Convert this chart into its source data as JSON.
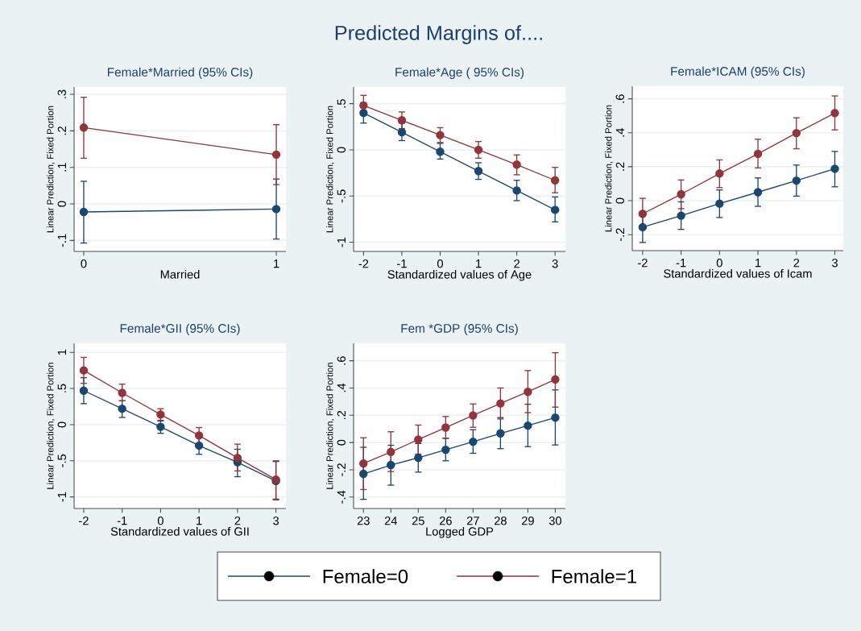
{
  "chart_data": [
    {
      "type": "line",
      "title": "Female*Married  (95% CIs)",
      "annotations": [
        "Predicted Margins of...."
      ],
      "xlabel": "Married",
      "ylabel": "Linear Prediction, Fixed Portion",
      "marker": "circle",
      "grid": "y",
      "x": [
        0,
        1
      ],
      "xlim": [
        -0.05,
        1.05
      ],
      "xticks": [
        0,
        1
      ],
      "ylim": [
        -0.13,
        0.32
      ],
      "yticks": [
        {
          "value": -0.1,
          "label": "-.1"
        },
        0,
        {
          "value": 0.1,
          "label": ".1"
        },
        {
          "value": 0.2,
          "label": ".2"
        },
        {
          "value": 0.3,
          "label": ".3"
        }
      ],
      "series": [
        {
          "color": "#1a476f",
          "values": [
            -0.022,
            -0.014
          ],
          "errors": [
            [
              -0.107,
              0.062
            ],
            [
              -0.096,
              0.068
            ]
          ]
        },
        {
          "color": "#90353b",
          "values": [
            0.209,
            0.135
          ],
          "errors": [
            [
              0.125,
              0.292
            ],
            [
              0.053,
              0.217
            ]
          ]
        }
      ]
    },
    {
      "type": "line",
      "title": "Female*Age ( 95% CIs)",
      "xlabel": "Standardized values of Age",
      "ylabel": "Linear Prediction, Fixed Portion",
      "marker": "circle",
      "grid": "y",
      "x": [
        -2,
        -1,
        0,
        1,
        2,
        3
      ],
      "xlim": [
        -2.26,
        3.27
      ],
      "xticks": [
        -2,
        -1,
        0,
        1,
        2,
        3
      ],
      "ylim": [
        -1.1,
        0.68
      ],
      "yticks": [
        -1,
        {
          "value": -0.5,
          "label": "-.5"
        },
        0,
        {
          "value": 0.5,
          "label": ".5"
        }
      ],
      "series": [
        {
          "color": "#1a476f",
          "values": [
            0.4,
            0.19,
            -0.02,
            -0.23,
            -0.44,
            -0.65
          ],
          "errors": [
            [
              0.29,
              0.51
            ],
            [
              0.1,
              0.29
            ],
            [
              -0.1,
              0.07
            ],
            [
              -0.32,
              -0.14
            ],
            [
              -0.55,
              -0.33
            ],
            [
              -0.78,
              -0.51
            ]
          ]
        },
        {
          "color": "#90353b",
          "values": [
            0.48,
            0.32,
            0.16,
            0.0,
            -0.16,
            -0.33
          ],
          "errors": [
            [
              0.375,
              0.59
            ],
            [
              0.23,
              0.41
            ],
            [
              0.08,
              0.24
            ],
            [
              -0.09,
              0.09
            ],
            [
              -0.27,
              -0.055
            ],
            [
              -0.465,
              -0.19
            ]
          ]
        }
      ]
    },
    {
      "type": "line",
      "title": "Female*ICAM (95% CIs)",
      "xlabel": "Standardized values of Icam",
      "ylabel": "Linear Prediction, Fixed Portion",
      "marker": "circle",
      "grid": "y",
      "x": [
        -2,
        -1,
        0,
        1,
        2,
        3
      ],
      "xlim": [
        -2.27,
        3.22
      ],
      "xticks": [
        -2,
        -1,
        0,
        1,
        2,
        3
      ],
      "ylim": [
        -0.294,
        0.674
      ],
      "yticks": [
        {
          "value": -0.2,
          "label": "-.2"
        },
        0,
        {
          "value": 0.2,
          "label": ".2"
        },
        {
          "value": 0.4,
          "label": ".4"
        },
        {
          "value": 0.6,
          "label": ".6"
        }
      ],
      "series": [
        {
          "color": "#1a476f",
          "values": [
            -0.156,
            -0.088,
            -0.017,
            0.05,
            0.118,
            0.188
          ],
          "errors": [
            [
              -0.246,
              -0.065
            ],
            [
              -0.169,
              -0.007
            ],
            [
              -0.099,
              0.063
            ],
            [
              -0.033,
              0.134
            ],
            [
              0.027,
              0.21
            ],
            [
              0.082,
              0.29
            ]
          ]
        },
        {
          "color": "#90353b",
          "values": [
            -0.077,
            0.038,
            0.16,
            0.276,
            0.398,
            0.516
          ],
          "errors": [
            [
              -0.168,
              0.014
            ],
            [
              -0.047,
              0.122
            ],
            [
              0.077,
              0.24
            ],
            [
              0.193,
              0.362
            ],
            [
              0.306,
              0.488
            ],
            [
              0.417,
              0.617
            ]
          ]
        }
      ]
    },
    {
      "type": "line",
      "title": "Female*GII (95% CIs)",
      "xlabel": "Standardized values of GII",
      "ylabel": "Linear Prediction, Fixed Portion",
      "marker": "circle",
      "grid": "y",
      "x": [
        -2,
        -1,
        0,
        1,
        2,
        3
      ],
      "xlim": [
        -2.25,
        3.26
      ],
      "xticks": [
        -2,
        -1,
        0,
        1,
        2,
        3
      ],
      "ylim": [
        -1.16,
        1.125
      ],
      "yticks": [
        -1,
        {
          "value": -0.5,
          "label": "-.5"
        },
        0,
        {
          "value": 0.5,
          "label": ".5"
        },
        1
      ],
      "series": [
        {
          "color": "#1a476f",
          "values": [
            0.47,
            0.22,
            -0.03,
            -0.29,
            -0.52,
            -0.78
          ],
          "errors": [
            [
              0.29,
              0.65
            ],
            [
              0.1,
              0.33
            ],
            [
              -0.12,
              0.05
            ],
            [
              -0.41,
              -0.17
            ],
            [
              -0.72,
              -0.34
            ],
            [
              -1.04,
              -0.51
            ]
          ]
        },
        {
          "color": "#90353b",
          "values": [
            0.75,
            0.44,
            0.14,
            -0.15,
            -0.46,
            -0.76
          ],
          "errors": [
            [
              0.57,
              0.93
            ],
            [
              0.33,
              0.56
            ],
            [
              0.06,
              0.22
            ],
            [
              -0.27,
              -0.04
            ],
            [
              -0.64,
              -0.27
            ],
            [
              -1.03,
              -0.5
            ]
          ]
        }
      ]
    },
    {
      "type": "line",
      "title": "Fem *GDP (95% CIs)",
      "xlabel": "Logged GDP",
      "ylabel": "Linear Prediction, Fixed Portion",
      "marker": "circle",
      "grid": "y",
      "legend": "bottom",
      "x": [
        23,
        24,
        25,
        26,
        27,
        28,
        29,
        30
      ],
      "xlim": [
        22.64,
        30.37
      ],
      "xticks": [
        23,
        24,
        25,
        26,
        27,
        28,
        29,
        30
      ],
      "ylim": [
        -0.484,
        0.728
      ],
      "yticks": [
        {
          "value": -0.4,
          "label": "-.4"
        },
        {
          "value": -0.2,
          "label": "-.2"
        },
        0,
        {
          "value": 0.2,
          "label": ".2"
        },
        {
          "value": 0.4,
          "label": ".4"
        },
        {
          "value": 0.6,
          "label": ".6"
        }
      ],
      "series": [
        {
          "name": "Female=0",
          "color": "#1a476f",
          "values": [
            -0.23,
            -0.165,
            -0.112,
            -0.053,
            0.006,
            0.067,
            0.124,
            0.183
          ],
          "errors": [
            [
              -0.417,
              -0.035
            ],
            [
              -0.313,
              -0.02
            ],
            [
              -0.217,
              -0.007
            ],
            [
              -0.134,
              0.031
            ],
            [
              -0.079,
              0.094
            ],
            [
              -0.045,
              0.183
            ],
            [
              -0.03,
              0.281
            ],
            [
              -0.018,
              0.386
            ]
          ]
        },
        {
          "name": "Female=1",
          "color": "#90353b",
          "values": [
            -0.154,
            -0.069,
            0.022,
            0.11,
            0.199,
            0.287,
            0.372,
            0.463
          ],
          "errors": [
            [
              -0.345,
              0.035
            ],
            [
              -0.213,
              0.079
            ],
            [
              -0.085,
              0.128
            ],
            [
              0.031,
              0.191
            ],
            [
              0.112,
              0.283
            ],
            [
              0.173,
              0.4
            ],
            [
              0.219,
              0.528
            ],
            [
              0.26,
              0.659
            ]
          ]
        }
      ]
    }
  ]
}
